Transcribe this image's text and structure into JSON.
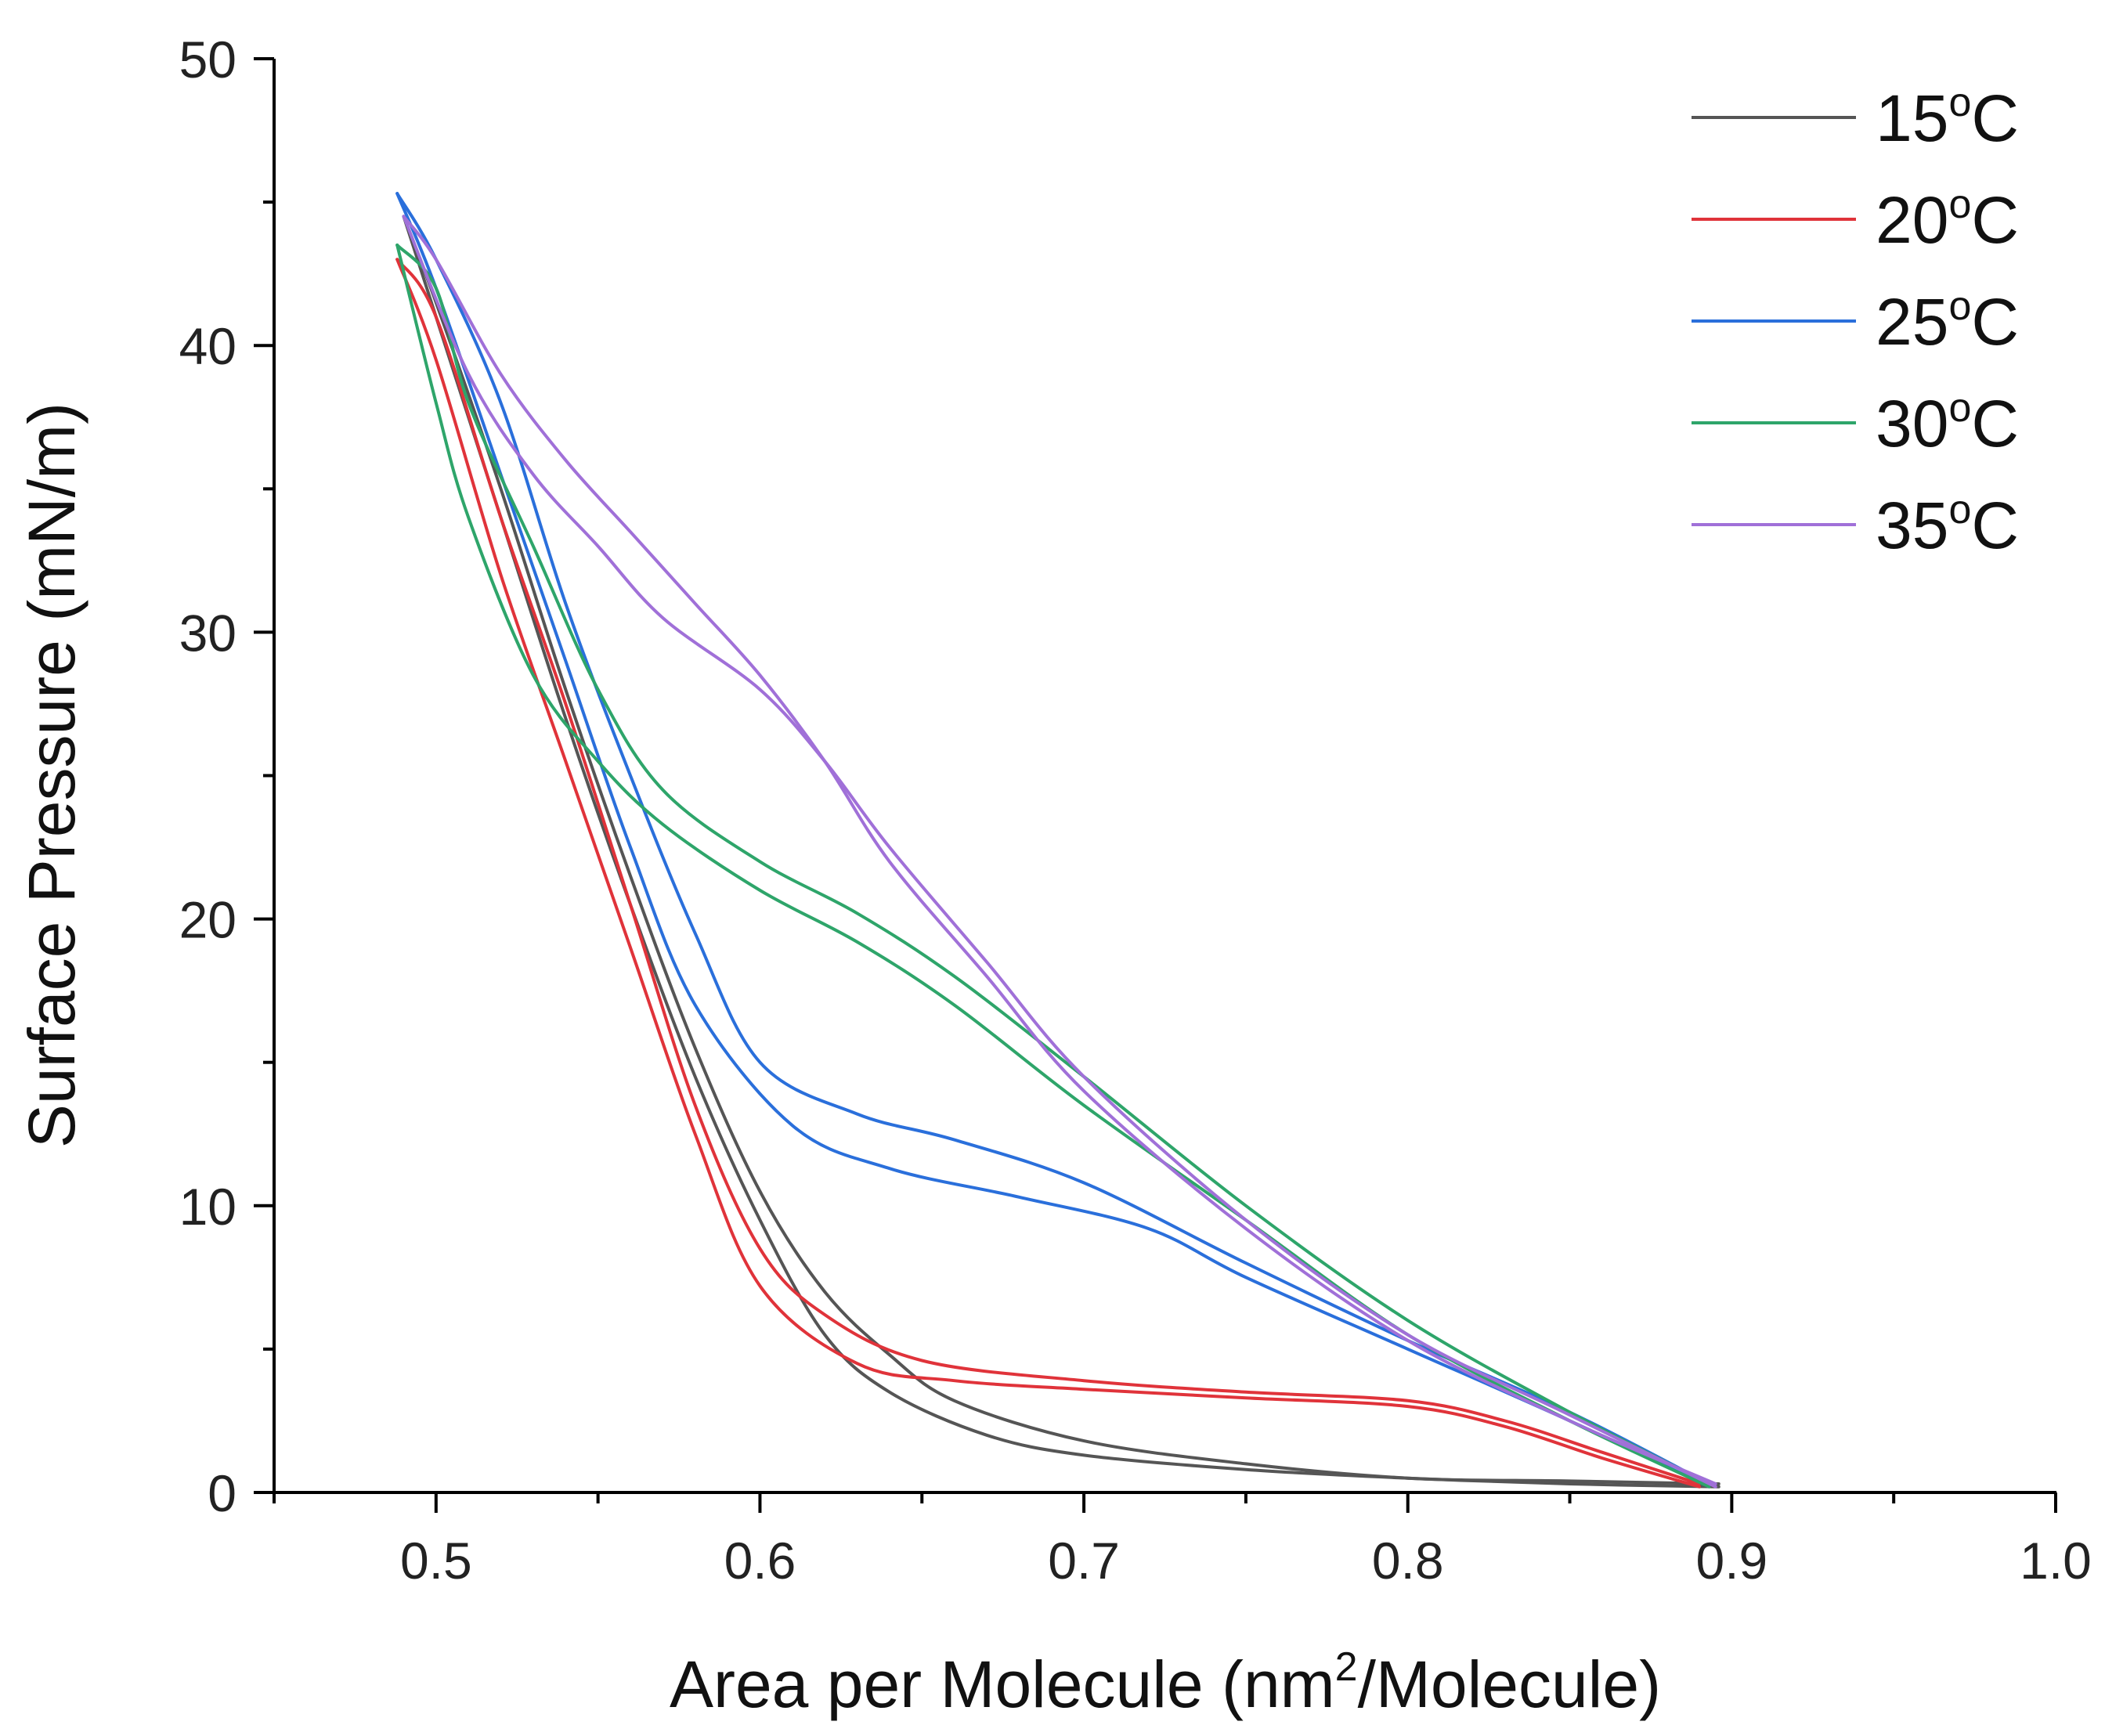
{
  "chart_data": {
    "type": "line",
    "title": "",
    "xlabel_parts": [
      "Area per Molecule (nm",
      "2",
      "/Molecule)"
    ],
    "ylabel": "Surface Pressure (mN/m)",
    "xlim": [
      0.45,
      1.0
    ],
    "ylim": [
      0,
      50
    ],
    "x_ticks": [
      0.5,
      0.6,
      0.7,
      0.8,
      0.9,
      1.0
    ],
    "x_tick_labels": [
      "0.5",
      "0.6",
      "0.7",
      "0.8",
      "0.9",
      "1.0"
    ],
    "x_minor_ticks": [
      0.45,
      0.55,
      0.65,
      0.75,
      0.85,
      0.95
    ],
    "y_ticks": [
      0,
      10,
      20,
      30,
      40,
      50
    ],
    "y_tick_labels": [
      "0",
      "10",
      "20",
      "30",
      "40",
      "50"
    ],
    "y_minor_ticks": [
      5,
      15,
      25,
      35,
      45
    ],
    "grid": false,
    "legend_position": "top-right",
    "series": [
      {
        "name": "15",
        "name_sup": "o",
        "name_suffix": "C",
        "color": "#555555",
        "compression": [
          [
            0.896,
            0.2
          ],
          [
            0.85,
            0.3
          ],
          [
            0.8,
            0.5
          ],
          [
            0.75,
            0.8
          ],
          [
            0.7,
            1.3
          ],
          [
            0.67,
            2.0
          ],
          [
            0.64,
            3.5
          ],
          [
            0.62,
            5.5
          ],
          [
            0.6,
            9.5
          ],
          [
            0.58,
            14.5
          ],
          [
            0.56,
            20.5
          ],
          [
            0.54,
            27
          ],
          [
            0.52,
            34
          ],
          [
            0.5,
            41
          ],
          [
            0.49,
            44.5
          ]
        ],
        "expansion": [
          [
            0.49,
            44.5
          ],
          [
            0.5,
            41.5
          ],
          [
            0.52,
            35
          ],
          [
            0.54,
            28
          ],
          [
            0.56,
            21.5
          ],
          [
            0.58,
            15.5
          ],
          [
            0.6,
            10.5
          ],
          [
            0.62,
            7
          ],
          [
            0.64,
            4.8
          ],
          [
            0.66,
            3.2
          ],
          [
            0.7,
            1.8
          ],
          [
            0.75,
            1.0
          ],
          [
            0.8,
            0.5
          ],
          [
            0.85,
            0.4
          ],
          [
            0.896,
            0.3
          ]
        ]
      },
      {
        "name": "20",
        "name_sup": "o",
        "name_suffix": "C",
        "color": "#e0333a",
        "compression": [
          [
            0.89,
            0.2
          ],
          [
            0.86,
            1.2
          ],
          [
            0.83,
            2.3
          ],
          [
            0.8,
            3.0
          ],
          [
            0.75,
            3.3
          ],
          [
            0.7,
            3.6
          ],
          [
            0.66,
            3.9
          ],
          [
            0.63,
            4.5
          ],
          [
            0.6,
            7.2
          ],
          [
            0.58,
            12.5
          ],
          [
            0.56,
            19
          ],
          [
            0.54,
            25.5
          ],
          [
            0.52,
            32
          ],
          [
            0.5,
            39.5
          ],
          [
            0.488,
            43
          ]
        ],
        "expansion": [
          [
            0.488,
            43
          ],
          [
            0.5,
            41
          ],
          [
            0.52,
            34
          ],
          [
            0.54,
            27.5
          ],
          [
            0.56,
            20.5
          ],
          [
            0.58,
            13.5
          ],
          [
            0.6,
            8.5
          ],
          [
            0.62,
            6.2
          ],
          [
            0.65,
            4.6
          ],
          [
            0.7,
            3.9
          ],
          [
            0.75,
            3.5
          ],
          [
            0.8,
            3.2
          ],
          [
            0.83,
            2.5
          ],
          [
            0.86,
            1.4
          ],
          [
            0.89,
            0.3
          ]
        ]
      },
      {
        "name": "25",
        "name_sup": "o",
        "name_suffix": "C",
        "color": "#2a6fdb",
        "compression": [
          [
            0.893,
            0.2
          ],
          [
            0.85,
            2.5
          ],
          [
            0.8,
            5.0
          ],
          [
            0.75,
            7.5
          ],
          [
            0.72,
            9.2
          ],
          [
            0.68,
            10.3
          ],
          [
            0.64,
            11.3
          ],
          [
            0.61,
            12.8
          ],
          [
            0.58,
            17
          ],
          [
            0.56,
            22.5
          ],
          [
            0.54,
            29
          ],
          [
            0.52,
            35.5
          ],
          [
            0.5,
            42
          ],
          [
            0.488,
            45.3
          ]
        ],
        "expansion": [
          [
            0.488,
            45.3
          ],
          [
            0.5,
            43
          ],
          [
            0.52,
            38
          ],
          [
            0.54,
            31
          ],
          [
            0.56,
            25
          ],
          [
            0.58,
            19.5
          ],
          [
            0.6,
            15
          ],
          [
            0.63,
            13.2
          ],
          [
            0.66,
            12.3
          ],
          [
            0.7,
            10.8
          ],
          [
            0.75,
            8
          ],
          [
            0.8,
            5.3
          ],
          [
            0.85,
            2.8
          ],
          [
            0.893,
            0.3
          ]
        ]
      },
      {
        "name": "30",
        "name_sup": "o",
        "name_suffix": "C",
        "color": "#2ea56a",
        "compression": [
          [
            0.893,
            0.2
          ],
          [
            0.85,
            2.5
          ],
          [
            0.8,
            5.5
          ],
          [
            0.75,
            9.5
          ],
          [
            0.7,
            13.5
          ],
          [
            0.66,
            17
          ],
          [
            0.63,
            19.2
          ],
          [
            0.6,
            21
          ],
          [
            0.57,
            23.3
          ],
          [
            0.55,
            25.5
          ],
          [
            0.53,
            28.5
          ],
          [
            0.51,
            34
          ],
          [
            0.5,
            38
          ],
          [
            0.488,
            43.5
          ]
        ],
        "expansion": [
          [
            0.488,
            43.5
          ],
          [
            0.5,
            42
          ],
          [
            0.51,
            38
          ],
          [
            0.53,
            33
          ],
          [
            0.55,
            28
          ],
          [
            0.57,
            24.5
          ],
          [
            0.6,
            22
          ],
          [
            0.63,
            20.2
          ],
          [
            0.66,
            18
          ],
          [
            0.7,
            14.5
          ],
          [
            0.75,
            10
          ],
          [
            0.8,
            6
          ],
          [
            0.85,
            2.8
          ],
          [
            0.893,
            0.3
          ]
        ]
      },
      {
        "name": "35",
        "name_sup": "o",
        "name_suffix": "C",
        "color": "#a070d8",
        "compression": [
          [
            0.895,
            0.2
          ],
          [
            0.85,
            2.7
          ],
          [
            0.8,
            5.5
          ],
          [
            0.75,
            9.5
          ],
          [
            0.7,
            14.5
          ],
          [
            0.67,
            18.5
          ],
          [
            0.64,
            22.5
          ],
          [
            0.62,
            25.5
          ],
          [
            0.6,
            28
          ],
          [
            0.57,
            30.5
          ],
          [
            0.55,
            33
          ],
          [
            0.53,
            35.5
          ],
          [
            0.51,
            39
          ],
          [
            0.49,
            44.5
          ]
        ],
        "expansion": [
          [
            0.49,
            44.5
          ],
          [
            0.5,
            43
          ],
          [
            0.52,
            39
          ],
          [
            0.54,
            36
          ],
          [
            0.56,
            33.5
          ],
          [
            0.58,
            31
          ],
          [
            0.6,
            28.5
          ],
          [
            0.62,
            25.5
          ],
          [
            0.64,
            22
          ],
          [
            0.67,
            18
          ],
          [
            0.7,
            14
          ],
          [
            0.75,
            9.2
          ],
          [
            0.8,
            5.3
          ],
          [
            0.85,
            2.5
          ],
          [
            0.895,
            0.3
          ]
        ]
      }
    ]
  }
}
